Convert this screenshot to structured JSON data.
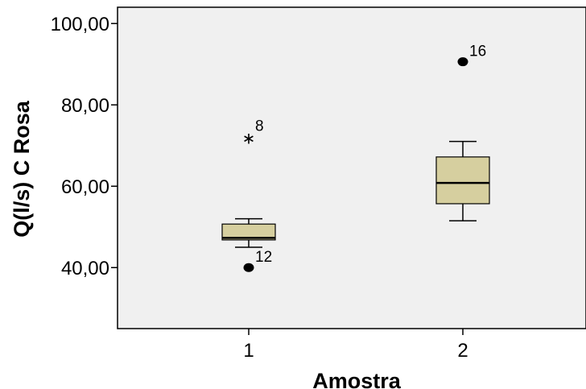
{
  "chart_data": {
    "type": "box",
    "title": "",
    "xlabel": "Amostra",
    "ylabel": "Q(l/s) C Rosa",
    "ylim": [
      25,
      104
    ],
    "yticks": [
      40,
      60,
      80,
      100
    ],
    "ytick_labels": [
      "40,00",
      "60,00",
      "80,00",
      "100,00"
    ],
    "categories": [
      "1",
      "2"
    ],
    "colors": {
      "plot_background": "#f0f0f0",
      "box_fill": "#d6cf9f",
      "stroke": "#000000"
    },
    "grid": false,
    "boxes": [
      {
        "category": "1",
        "whisker_low": 45,
        "q1": 46.8,
        "median": 47.3,
        "q3": 50.7,
        "whisker_high": 52,
        "outliers": [
          {
            "value": 72.2,
            "label": "8",
            "marker": "star"
          },
          {
            "value": 40,
            "label": "12",
            "marker": "circle"
          }
        ]
      },
      {
        "category": "2",
        "whisker_low": 51.5,
        "q1": 55.7,
        "median": 60.8,
        "q3": 67.2,
        "whisker_high": 71,
        "outliers": [
          {
            "value": 90.6,
            "label": "16",
            "marker": "circle"
          }
        ]
      }
    ]
  }
}
